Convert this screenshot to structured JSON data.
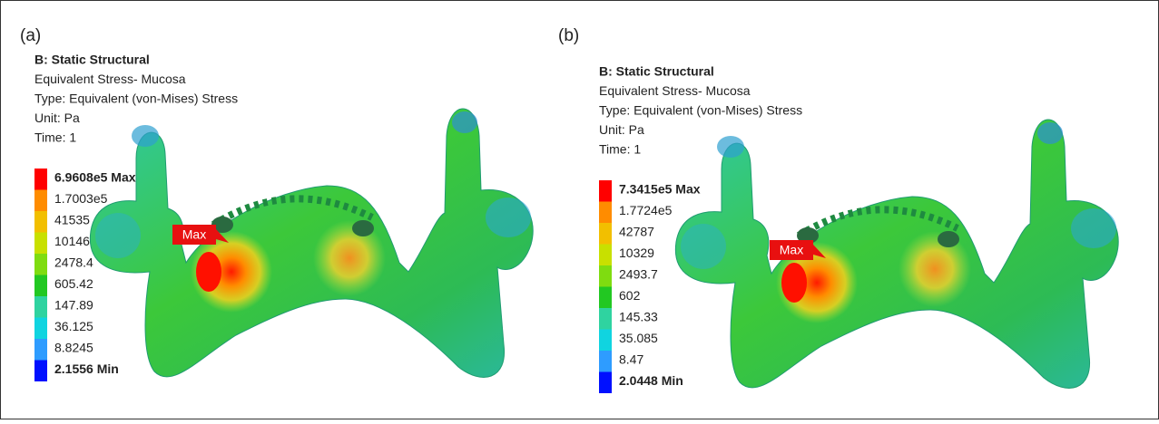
{
  "panels": [
    {
      "label": "(a)",
      "header": [
        "B: Static Structural",
        "Equivalent Stress- Mucosa",
        "Type: Equivalent (von-Mises) Stress",
        "Unit: Pa",
        "Time: 1"
      ],
      "legend": {
        "labels": [
          "6.9608e5 Max",
          "1.7003e5",
          "41535",
          "10146",
          "2478.4",
          "605.42",
          "147.89",
          "36.125",
          "8.8245",
          "2.1556 Min"
        ],
        "colors": [
          "#ff0000",
          "#ff8c00",
          "#f2bf00",
          "#c8e000",
          "#7fdc10",
          "#22c822",
          "#2fd3a0",
          "#10d4e0",
          "#2e9cff",
          "#0010ff"
        ]
      },
      "marker": "Max"
    },
    {
      "label": "(b)",
      "header": [
        "B: Static Structural",
        "Equivalent Stress- Mucosa",
        "Type: Equivalent (von-Mises) Stress",
        "Unit: Pa",
        "Time: 1"
      ],
      "legend": {
        "labels": [
          "7.3415e5 Max",
          "1.7724e5",
          "42787",
          "10329",
          "2493.7",
          "602",
          "145.33",
          "35.085",
          "8.47",
          "2.0448 Min"
        ],
        "colors": [
          "#ff0000",
          "#ff8c00",
          "#f2bf00",
          "#c8e000",
          "#7fdc10",
          "#22c822",
          "#2fd3a0",
          "#10d4e0",
          "#2e9cff",
          "#0010ff"
        ]
      },
      "marker": "Max"
    }
  ]
}
